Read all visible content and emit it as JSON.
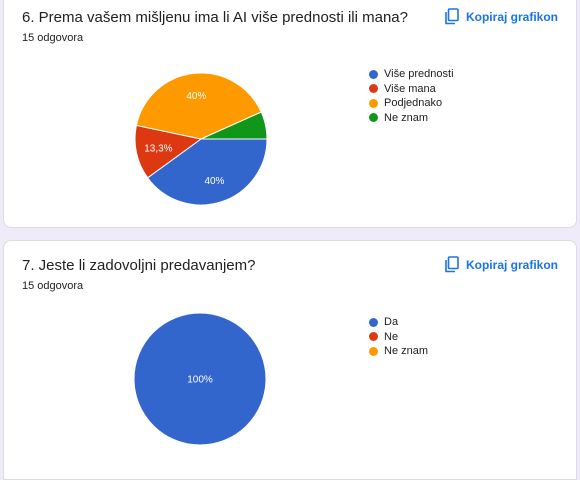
{
  "questions": [
    {
      "title": "6. Prema vašem mišljenu ima li AI više prednosti ili mana?",
      "response_count": "15 odgovora",
      "copy_label": "Kopiraj grafikon"
    },
    {
      "title": "7. Jeste li zadovoljni predavanjem?",
      "response_count": "15 odgovora",
      "copy_label": "Kopiraj grafikon"
    }
  ],
  "chart_data": [
    {
      "type": "pie",
      "categories": [
        "Više prednosti",
        "Više mana",
        "Podjednako",
        "Ne znam"
      ],
      "values": [
        40,
        13.3,
        40,
        6.7
      ],
      "value_labels": [
        "40%",
        "13,3%",
        "40%",
        ""
      ],
      "colors": [
        "#3366cc",
        "#dc3912",
        "#ff9900",
        "#109618"
      ],
      "legend_position": "right"
    },
    {
      "type": "pie",
      "categories": [
        "Da",
        "Ne",
        "Ne znam"
      ],
      "values": [
        100,
        0,
        0
      ],
      "value_labels": [
        "100%",
        "",
        ""
      ],
      "colors": [
        "#3366cc",
        "#dc3912",
        "#ff9900"
      ],
      "legend_position": "right"
    }
  ]
}
